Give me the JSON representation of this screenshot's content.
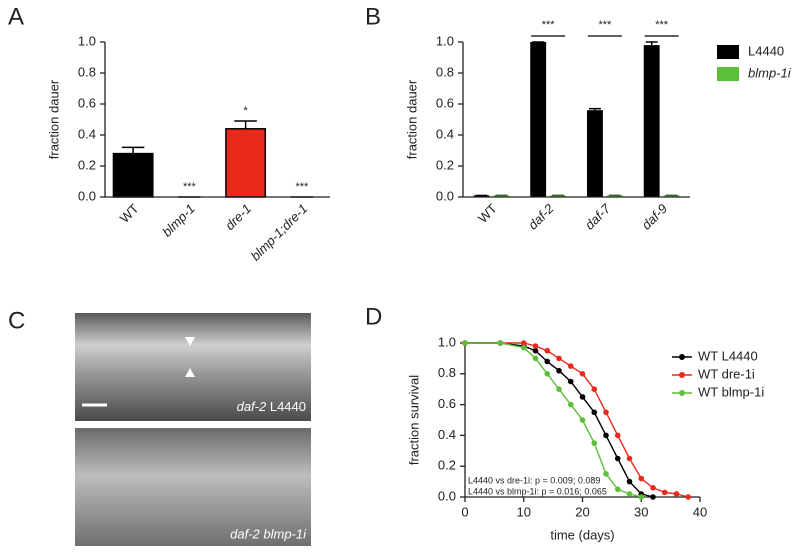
{
  "chart_data": [
    {
      "type": "bar",
      "label": "A",
      "ylabel": "fraction dauer",
      "categories": [
        "WT",
        "blmp-1",
        "dre-1",
        "blmp-1;dre-1"
      ],
      "italic_labels": [
        false,
        true,
        true,
        true
      ],
      "values": [
        0.28,
        0,
        0.44,
        0
      ],
      "errors": [
        0.04,
        0,
        0.05,
        0
      ],
      "colors": [
        "#000000",
        "#000000",
        "#e8291c",
        "#000000"
      ],
      "significance": [
        null,
        "***",
        "*",
        "***"
      ],
      "ylim": [
        0,
        1
      ],
      "yticks": [
        {
          "value": 0,
          "label": "0.0"
        },
        0.2,
        0.4,
        0.6,
        0.8,
        {
          "value": 1,
          "label": "1.0"
        }
      ]
    },
    {
      "type": "grouped_bar",
      "label": "B",
      "ylabel": "fraction dauer",
      "categories": [
        "WT",
        "daf-2",
        "daf-7",
        "daf-9"
      ],
      "italic_labels": [
        false,
        true,
        true,
        true
      ],
      "series": [
        {
          "name": "L4440",
          "color": "#000000",
          "values": [
            0.01,
            1.0,
            0.56,
            0.98
          ],
          "errors": [
            0,
            0,
            0.01,
            0.02
          ]
        },
        {
          "name": "blmp-1i",
          "color": "#5cbf3a",
          "values": [
            0.01,
            0.01,
            0.01,
            0.01
          ],
          "errors": [
            0,
            0,
            0,
            0
          ]
        }
      ],
      "significance": [
        null,
        "***",
        "***",
        "***"
      ],
      "ylim": [
        0,
        1
      ],
      "yticks": [
        {
          "value": 0,
          "label": "0.0"
        },
        0.2,
        0.4,
        0.6,
        0.8,
        {
          "value": 1,
          "label": "1.0"
        }
      ]
    },
    {
      "type": "line",
      "label": "D",
      "xlabel": "time (days)",
      "ylabel": "fraction survival",
      "x": [
        0,
        6,
        10,
        12,
        14,
        16,
        18,
        20,
        22,
        24,
        26,
        28,
        30,
        32,
        34,
        36,
        38
      ],
      "series": [
        {
          "name": "WT L4440",
          "color": "#000000",
          "values": [
            1,
            1,
            0.98,
            0.95,
            0.88,
            0.82,
            0.75,
            0.65,
            0.55,
            0.4,
            0.25,
            0.1,
            0.02,
            0,
            null,
            null,
            null
          ]
        },
        {
          "name": "WT dre-1i",
          "color": "#e8291c",
          "values": [
            1,
            1,
            1,
            0.98,
            0.95,
            0.9,
            0.85,
            0.8,
            0.7,
            0.55,
            0.4,
            0.25,
            0.12,
            0.06,
            0.03,
            0.02,
            0
          ]
        },
        {
          "name": "WT blmp-1i",
          "color": "#5cbf3a",
          "values": [
            1,
            1,
            0.97,
            0.9,
            0.8,
            0.7,
            0.6,
            0.5,
            0.35,
            0.15,
            0.05,
            0.02,
            0,
            null,
            null,
            null,
            null
          ]
        }
      ],
      "annotations": [
        "L4440 vs dre-1i: p = 0.009; 0.089",
        "L4440 vs blmp-1i: p = 0.016; 0.065"
      ],
      "xlim": [
        0,
        40
      ],
      "xticks": [
        0,
        10,
        20,
        30,
        40
      ],
      "ylim": [
        0,
        1
      ],
      "yticks": [
        {
          "value": 0,
          "label": "0.0"
        },
        0.2,
        0.4,
        0.6,
        0.8,
        {
          "value": 1,
          "label": "1.0"
        }
      ]
    }
  ],
  "image_panel": {
    "label": "C",
    "top_caption": [
      "daf-2",
      " L4440"
    ],
    "bottom_caption": "daf-2 blmp-1i"
  }
}
